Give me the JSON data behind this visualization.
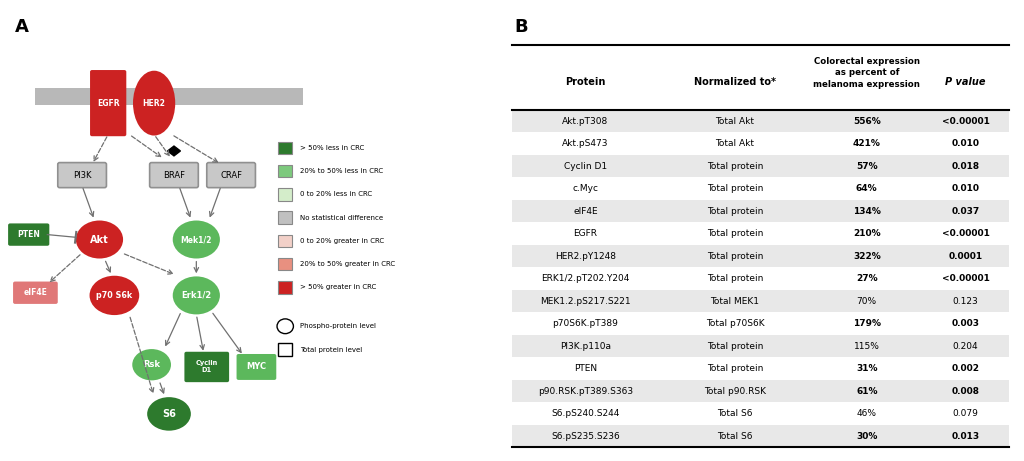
{
  "panel_b": {
    "rows": [
      {
        "protein": "Akt.pT308",
        "normalized": "Total Akt",
        "percent": "556%",
        "pvalue": "<0.00001",
        "bold_percent": true,
        "bold_p": true,
        "shaded": true
      },
      {
        "protein": "Akt.pS473",
        "normalized": "Total Akt",
        "percent": "421%",
        "pvalue": "0.010",
        "bold_percent": true,
        "bold_p": true,
        "shaded": false
      },
      {
        "protein": "Cyclin D1",
        "normalized": "Total protein",
        "percent": "57%",
        "pvalue": "0.018",
        "bold_percent": true,
        "bold_p": true,
        "shaded": true
      },
      {
        "protein": "c.Myc",
        "normalized": "Total protein",
        "percent": "64%",
        "pvalue": "0.010",
        "bold_percent": true,
        "bold_p": true,
        "shaded": false
      },
      {
        "protein": "eIF4E",
        "normalized": "Total protein",
        "percent": "134%",
        "pvalue": "0.037",
        "bold_percent": true,
        "bold_p": true,
        "shaded": true
      },
      {
        "protein": "EGFR",
        "normalized": "Total protein",
        "percent": "210%",
        "pvalue": "<0.00001",
        "bold_percent": true,
        "bold_p": true,
        "shaded": false
      },
      {
        "protein": "HER2.pY1248",
        "normalized": "Total protein",
        "percent": "322%",
        "pvalue": "0.0001",
        "bold_percent": true,
        "bold_p": true,
        "shaded": true
      },
      {
        "protein": "ERK1/2.pT202.Y204",
        "normalized": "Total protein",
        "percent": "27%",
        "pvalue": "<0.00001",
        "bold_percent": true,
        "bold_p": true,
        "shaded": false
      },
      {
        "protein": "MEK1.2.pS217.S221",
        "normalized": "Total MEK1",
        "percent": "70%",
        "pvalue": "0.123",
        "bold_percent": false,
        "bold_p": false,
        "shaded": true
      },
      {
        "protein": "p70S6K.pT389",
        "normalized": "Total p70S6K",
        "percent": "179%",
        "pvalue": "0.003",
        "bold_percent": true,
        "bold_p": true,
        "shaded": false
      },
      {
        "protein": "PI3K.p110a",
        "normalized": "Total protein",
        "percent": "115%",
        "pvalue": "0.204",
        "bold_percent": false,
        "bold_p": false,
        "shaded": true
      },
      {
        "protein": "PTEN",
        "normalized": "Total protein",
        "percent": "31%",
        "pvalue": "0.002",
        "bold_percent": true,
        "bold_p": true,
        "shaded": false
      },
      {
        "protein": "p90.RSK.pT389.S363",
        "normalized": "Total p90.RSK",
        "percent": "61%",
        "pvalue": "0.008",
        "bold_percent": true,
        "bold_p": true,
        "shaded": true
      },
      {
        "protein": "S6.pS240.S244",
        "normalized": "Total S6",
        "percent": "46%",
        "pvalue": "0.079",
        "bold_percent": false,
        "bold_p": false,
        "shaded": false
      },
      {
        "protein": "S6.pS235.S236",
        "normalized": "Total S6",
        "percent": "30%",
        "pvalue": "0.013",
        "bold_percent": true,
        "bold_p": true,
        "shaded": true
      }
    ]
  },
  "legend_items": [
    {
      "color": "#2d7a2d",
      "label": "> 50% less in CRC"
    },
    {
      "color": "#7dc97d",
      "label": "20% to 50% less in CRC"
    },
    {
      "color": "#d4edca",
      "label": "0 to 20% less in CRC"
    },
    {
      "color": "#c0c0c0",
      "label": "No statistical difference"
    },
    {
      "color": "#f2d0c8",
      "label": "0 to 20% greater in CRC"
    },
    {
      "color": "#e89080",
      "label": "20% to 50% greater in CRC"
    },
    {
      "color": "#cc2222",
      "label": "> 50% greater in CRC"
    }
  ],
  "colors": {
    "dark_green": "#2d7a2d",
    "medium_green": "#5cb85c",
    "light_green": "#d4edca",
    "gray_box": "#c8c8c8",
    "gray_box_edge": "#909090",
    "dark_red": "#cc2222",
    "medium_red": "#e07070",
    "membrane_gray": "#b8b8b8",
    "row_shade": "#e8e8e8",
    "eif4e_color": "#e07878",
    "white": "#ffffff",
    "arrow_gray": "#707070"
  }
}
